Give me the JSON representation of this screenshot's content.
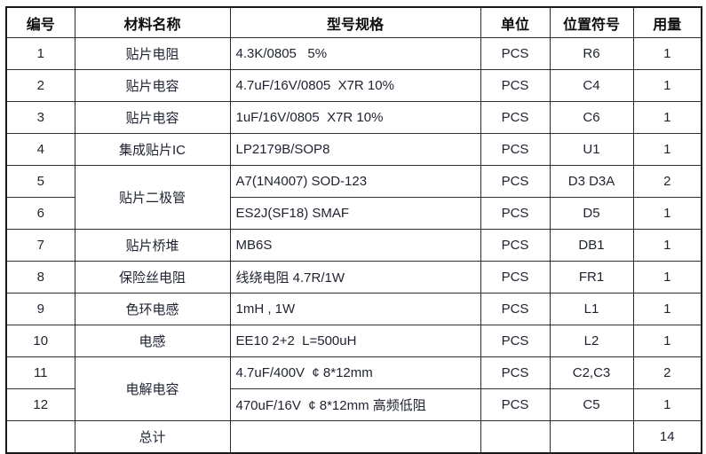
{
  "page": {
    "background_color": "#ffffff",
    "border_color": "#19191d",
    "text_color": "#1e2230"
  },
  "table": {
    "columns": [
      {
        "key": "index",
        "label": "编号",
        "align": "center"
      },
      {
        "key": "material-name",
        "label": "材料名称",
        "align": "center"
      },
      {
        "key": "spec",
        "label": "型号规格",
        "align": "left"
      },
      {
        "key": "unit",
        "label": "单位",
        "align": "center"
      },
      {
        "key": "designator",
        "label": "位置符号",
        "align": "center"
      },
      {
        "key": "quantity",
        "label": "用量",
        "align": "center"
      }
    ],
    "rows": [
      [
        "1",
        "贴片电阻",
        "4.3K/0805   5%",
        "PCS",
        "R6",
        "1"
      ],
      [
        "2",
        "贴片电容",
        "4.7uF/16V/0805  X7R 10%",
        "PCS",
        "C4",
        "1"
      ],
      [
        "3",
        "贴片电容",
        "1uF/16V/0805  X7R 10%",
        "PCS",
        "C6",
        "1"
      ],
      [
        "4",
        "集成贴片IC",
        "LP2179B/SOP8",
        "PCS",
        "U1",
        "1"
      ],
      [
        "5",
        {
          "t": "贴片二极管",
          "rowspan": 2
        },
        "A7(1N4007) SOD-123",
        "PCS",
        "D3 D3A",
        "2"
      ],
      [
        "6",
        "ES2J(SF18) SMAF",
        "PCS",
        "D5",
        "1"
      ],
      [
        "7",
        "贴片桥堆",
        "MB6S",
        "PCS",
        "DB1",
        "1"
      ],
      [
        "8",
        "保险丝电阻",
        "线绕电阻 4.7R/1W",
        "PCS",
        "FR1",
        "1"
      ],
      [
        "9",
        "色环电感",
        "1mH , 1W",
        "PCS",
        "L1",
        "1"
      ],
      [
        "10",
        "电感",
        "EE10 2+2  L=500uH",
        "PCS",
        "L2",
        "1"
      ],
      [
        "11",
        {
          "t": "电解电容",
          "rowspan": 2
        },
        "4.7uF/400V  ¢ 8*12mm",
        "PCS",
        "C2,C3",
        "2"
      ],
      [
        "12",
        "470uF/16V  ¢ 8*12mm 高频低阻",
        "PCS",
        "C5",
        "1"
      ],
      [
        "",
        "总计",
        "",
        "",
        "",
        "14"
      ]
    ]
  }
}
